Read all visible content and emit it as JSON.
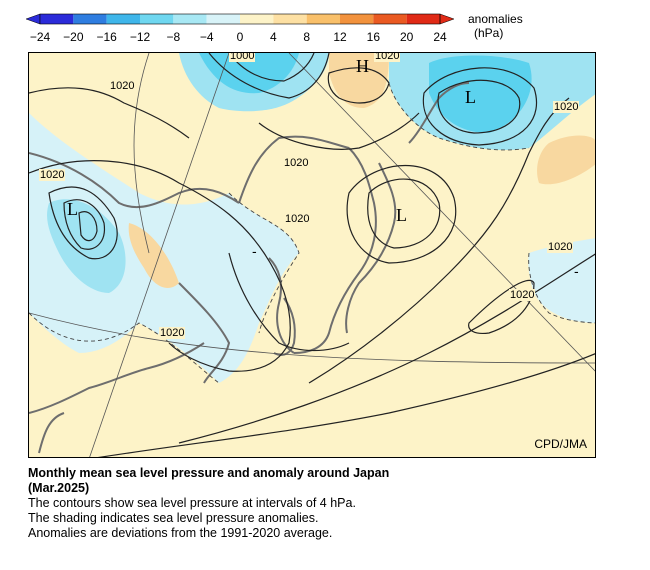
{
  "legend": {
    "title": "anomalies",
    "unit": "(hPa)",
    "ticks": [
      "−24",
      "−20",
      "−16",
      "−12",
      "−8",
      "−4",
      "0",
      "4",
      "8",
      "12",
      "16",
      "20",
      "24"
    ],
    "colors": [
      "#2b2bd9",
      "#2f7de0",
      "#3fb6ea",
      "#6fd7f0",
      "#a8e8f4",
      "#d8f3f8",
      "#fdf3c8",
      "#fde0a3",
      "#f9c06a",
      "#f2923d",
      "#ea5a22",
      "#e02a16"
    ]
  },
  "map": {
    "credit": "CPD/JMA",
    "isobar_labels": [
      "1000",
      "1020",
      "1020",
      "1020",
      "1020",
      "1020",
      "1020",
      "1020",
      "1020"
    ],
    "pressure_centers": [
      "H",
      "L",
      "L",
      "L"
    ],
    "anomaly_signs": [
      "-",
      "-"
    ],
    "colors": {
      "neg_light": "#d6f2f8",
      "neg_mid": "#9fe3f2",
      "neg_strong": "#5bd2ee",
      "pos": "#f8d8a0",
      "base": "#fdf3c8",
      "coast": "#6e6e6e"
    }
  },
  "caption": {
    "title": "Monthly mean sea level pressure and anomaly around Japan",
    "period": "(Mar.2025)",
    "line1": "The contours show sea level pressure at intervals of 4 hPa.",
    "line2": "The shading indicates sea level pressure anomalies.",
    "line3": "Anomalies are deviations from the 1991-2020 average."
  }
}
